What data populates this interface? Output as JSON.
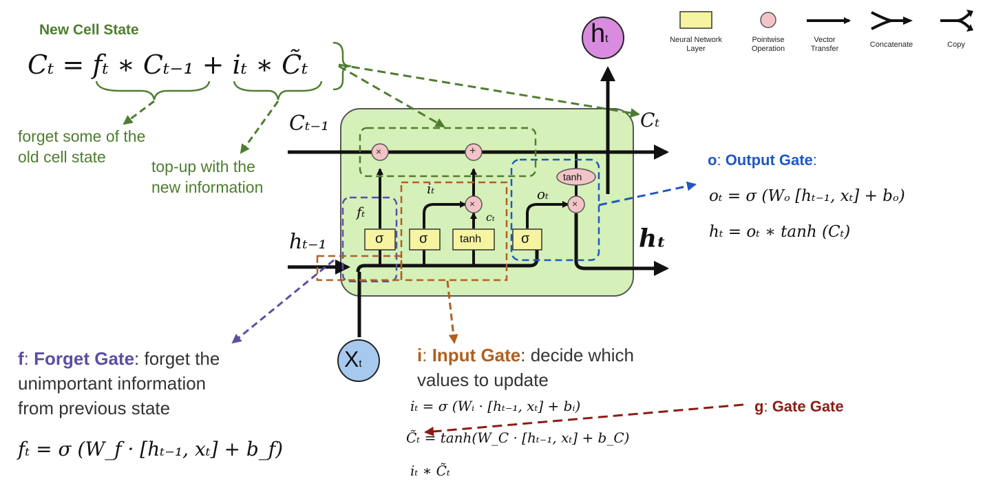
{
  "header": {
    "new_cell_state": "New Cell State",
    "cell_eq": "Cₜ = fₜ ∗ Cₜ₋₁ + iₜ ∗ C̃ₜ",
    "forget_note_1": "forget some of the",
    "forget_note_2": "old cell state",
    "topup_note_1": "top-up with the",
    "topup_note_2": "new information"
  },
  "legend": {
    "items": [
      {
        "label_1": "Neural Network",
        "label_2": "Layer",
        "icon": "neural-network-layer-icon"
      },
      {
        "label_1": "Pointwise",
        "label_2": "Operation",
        "icon": "pointwise-operation-icon"
      },
      {
        "label_1": "Vector",
        "label_2": "Transfer",
        "icon": "vector-transfer-icon"
      },
      {
        "label_1": "Concatenate",
        "label_2": "",
        "icon": "concatenate-icon"
      },
      {
        "label_1": "Copy",
        "label_2": "",
        "icon": "copy-icon"
      }
    ]
  },
  "diagram": {
    "ht_top": "h",
    "ht_top_sub": "t",
    "xt": "X",
    "xt_sub": "t",
    "c_prev": "Cₜ₋₁",
    "c_out": "Cₜ",
    "h_prev": "hₜ₋₁",
    "h_out": "hₜ",
    "f_label": "fₜ",
    "i_label": "iₜ",
    "c_label": "cₜ",
    "o_label": "oₜ",
    "sigma": "σ",
    "tanh": "tanh",
    "times": "×",
    "plus": "+"
  },
  "output_gate": {
    "letter": "o",
    "sep": ": ",
    "name": "Output Gate",
    "colon": ":",
    "eq1": "oₜ = σ (Wₒ [hₜ₋₁, xₜ] + bₒ)",
    "eq2": "hₜ = oₜ ∗ tanh (Cₜ)"
  },
  "forget_gate": {
    "letter": "f",
    "sep": ": ",
    "name": "Forget Gate",
    "desc_1": ": forget the",
    "desc_2": "unimportant information",
    "desc_3": "from previous state",
    "eq": "fₜ = σ (W_f · [hₜ₋₁, xₜ] + b_f)"
  },
  "input_gate": {
    "letter": "i",
    "sep": ": ",
    "name": "Input Gate",
    "desc_1": ": decide which",
    "desc_2": "values to update",
    "eq1": "iₜ = σ (Wᵢ · [hₜ₋₁, xₜ] + bᵢ)",
    "eq2": "C̃ₜ = tanh(W_C · [hₜ₋₁, xₜ] + b_C)",
    "eq3": "iₜ ∗ C̃ₜ"
  },
  "gate_gate": {
    "letter": "g",
    "sep": ": ",
    "name": "Gate Gate"
  },
  "colors": {
    "green": "#4e7d2f",
    "blue": "#1f57c4",
    "purple": "#5b4ea3",
    "brown": "#b05f1f",
    "dark_red": "#8c1b13",
    "cell_fill": "#d5f0b8",
    "layer_fill": "#f6f4a0",
    "pointwise_fill": "#f2c4c8",
    "ht_fill": "#d98be0",
    "xt_fill": "#a7c9f0"
  }
}
